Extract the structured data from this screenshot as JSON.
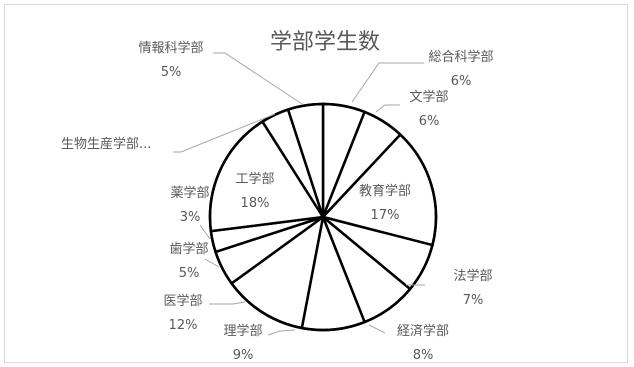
{
  "chart_data": {
    "type": "pie",
    "title": "学部学生数",
    "slices": [
      {
        "name": "総合科学部",
        "percent_label": "6%",
        "value": 6
      },
      {
        "name": "文学部",
        "percent_label": "6%",
        "value": 6
      },
      {
        "name": "教育学部",
        "percent_label": "17%",
        "value": 17
      },
      {
        "name": "法学部",
        "percent_label": "7%",
        "value": 7
      },
      {
        "name": "経済学部",
        "percent_label": "8%",
        "value": 8
      },
      {
        "name": "理学部",
        "percent_label": "9%",
        "value": 9
      },
      {
        "name": "医学部",
        "percent_label": "12%",
        "value": 12
      },
      {
        "name": "歯学部",
        "percent_label": "5%",
        "value": 5
      },
      {
        "name": "薬学部",
        "percent_label": "3%",
        "value": 3
      },
      {
        "name": "工学部",
        "percent_label": "18%",
        "value": 18
      },
      {
        "name": "生物生産学部...",
        "percent_label": "",
        "value": 4
      },
      {
        "name": "情報科学部",
        "percent_label": "5%",
        "value": 5
      }
    ],
    "start_angle_deg": 0,
    "direction": "clockwise",
    "legend": "none",
    "colors": {
      "slice_fill": "#ffffff",
      "slice_stroke": "#000000",
      "text": "#595959",
      "leader": "#a6a6a6",
      "frame_border": "#d9d9d9"
    }
  }
}
